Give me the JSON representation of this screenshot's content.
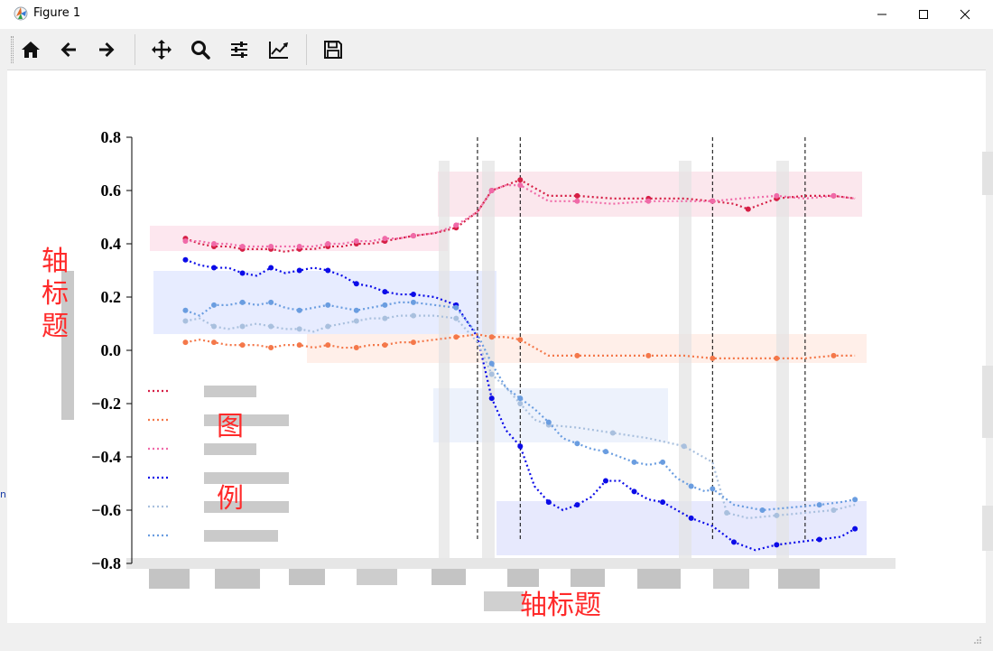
{
  "window": {
    "title": "Figure 1"
  },
  "toolbar": {
    "buttons": [
      {
        "name": "home",
        "icon": "home-icon"
      },
      {
        "name": "back",
        "icon": "arrow-left-icon"
      },
      {
        "name": "forward",
        "icon": "arrow-right-icon"
      },
      {
        "name": "pan",
        "icon": "move-icon"
      },
      {
        "name": "zoom",
        "icon": "magnifier-icon"
      },
      {
        "name": "subplots",
        "icon": "sliders-icon"
      },
      {
        "name": "edit",
        "icon": "line-chart-icon"
      },
      {
        "name": "save",
        "icon": "floppy-disk-icon"
      }
    ]
  },
  "annotations": {
    "ylabel": "轴标题",
    "xlabel": "轴标题",
    "legend_line1": "图",
    "legend_line2": "例"
  },
  "left_fragment": "n",
  "chart_data": {
    "type": "line",
    "ylim": [
      -0.8,
      0.8
    ],
    "yticks": [
      "0.8",
      "0.6",
      "0.4",
      "0.2",
      "0.0",
      "−0.2",
      "−0.4",
      "−0.6",
      "−0.8"
    ],
    "ytick_values": [
      0.8,
      0.6,
      0.4,
      0.2,
      0.0,
      -0.2,
      -0.4,
      -0.6,
      -0.8
    ],
    "x_range": [
      0,
      100
    ],
    "vlines": [
      46,
      52,
      79,
      92
    ],
    "legend_colors": [
      "#d61f45",
      "#f4784a",
      "#f06aa8",
      "#0b0be8",
      "#a9c0de",
      "#6a9de0"
    ],
    "series": [
      {
        "color": "#d61f45",
        "points": [
          [
            5,
            0.42
          ],
          [
            7,
            0.4
          ],
          [
            9,
            0.39
          ],
          [
            11,
            0.39
          ],
          [
            13,
            0.38
          ],
          [
            15,
            0.38
          ],
          [
            17,
            0.38
          ],
          [
            19,
            0.37
          ],
          [
            21,
            0.38
          ],
          [
            23,
            0.38
          ],
          [
            25,
            0.39
          ],
          [
            27,
            0.39
          ],
          [
            29,
            0.4
          ],
          [
            31,
            0.4
          ],
          [
            33,
            0.41
          ],
          [
            35,
            0.42
          ],
          [
            37,
            0.43
          ],
          [
            40,
            0.44
          ],
          [
            43,
            0.46
          ],
          [
            46,
            0.52
          ],
          [
            48,
            0.6
          ],
          [
            50,
            0.62
          ],
          [
            52,
            0.64
          ],
          [
            56,
            0.58
          ],
          [
            60,
            0.58
          ],
          [
            65,
            0.57
          ],
          [
            70,
            0.57
          ],
          [
            75,
            0.57
          ],
          [
            79,
            0.56
          ],
          [
            82,
            0.55
          ],
          [
            84,
            0.53
          ],
          [
            86,
            0.55
          ],
          [
            88,
            0.57
          ],
          [
            92,
            0.58
          ],
          [
            96,
            0.58
          ],
          [
            99,
            0.57
          ]
        ]
      },
      {
        "color": "#f06aa8",
        "points": [
          [
            5,
            0.41
          ],
          [
            7,
            0.41
          ],
          [
            9,
            0.4
          ],
          [
            11,
            0.4
          ],
          [
            13,
            0.39
          ],
          [
            15,
            0.39
          ],
          [
            17,
            0.39
          ],
          [
            19,
            0.39
          ],
          [
            21,
            0.39
          ],
          [
            23,
            0.39
          ],
          [
            25,
            0.4
          ],
          [
            27,
            0.4
          ],
          [
            29,
            0.41
          ],
          [
            31,
            0.41
          ],
          [
            33,
            0.42
          ],
          [
            35,
            0.42
          ],
          [
            37,
            0.43
          ],
          [
            40,
            0.44
          ],
          [
            43,
            0.47
          ],
          [
            46,
            0.52
          ],
          [
            48,
            0.6
          ],
          [
            50,
            0.62
          ],
          [
            52,
            0.62
          ],
          [
            56,
            0.56
          ],
          [
            60,
            0.56
          ],
          [
            65,
            0.55
          ],
          [
            70,
            0.56
          ],
          [
            75,
            0.56
          ],
          [
            79,
            0.56
          ],
          [
            83,
            0.57
          ],
          [
            88,
            0.58
          ],
          [
            92,
            0.57
          ],
          [
            96,
            0.58
          ],
          [
            99,
            0.57
          ]
        ]
      },
      {
        "color": "#0b0be8",
        "points": [
          [
            5,
            0.34
          ],
          [
            7,
            0.32
          ],
          [
            9,
            0.31
          ],
          [
            11,
            0.31
          ],
          [
            13,
            0.29
          ],
          [
            15,
            0.28
          ],
          [
            17,
            0.31
          ],
          [
            19,
            0.29
          ],
          [
            21,
            0.3
          ],
          [
            23,
            0.31
          ],
          [
            25,
            0.3
          ],
          [
            27,
            0.28
          ],
          [
            29,
            0.25
          ],
          [
            31,
            0.24
          ],
          [
            33,
            0.22
          ],
          [
            35,
            0.21
          ],
          [
            37,
            0.21
          ],
          [
            40,
            0.2
          ],
          [
            43,
            0.17
          ],
          [
            46,
            0.05
          ],
          [
            48,
            -0.18
          ],
          [
            50,
            -0.3
          ],
          [
            52,
            -0.36
          ],
          [
            54,
            -0.51
          ],
          [
            56,
            -0.57
          ],
          [
            58,
            -0.6
          ],
          [
            60,
            -0.58
          ],
          [
            62,
            -0.55
          ],
          [
            64,
            -0.49
          ],
          [
            66,
            -0.49
          ],
          [
            68,
            -0.53
          ],
          [
            70,
            -0.56
          ],
          [
            72,
            -0.57
          ],
          [
            74,
            -0.6
          ],
          [
            76,
            -0.63
          ],
          [
            79,
            -0.66
          ],
          [
            82,
            -0.72
          ],
          [
            85,
            -0.75
          ],
          [
            88,
            -0.73
          ],
          [
            91,
            -0.72
          ],
          [
            94,
            -0.71
          ],
          [
            97,
            -0.7
          ],
          [
            99,
            -0.67
          ]
        ]
      },
      {
        "color": "#a9c0de",
        "points": [
          [
            5,
            0.11
          ],
          [
            7,
            0.12
          ],
          [
            9,
            0.09
          ],
          [
            11,
            0.08
          ],
          [
            13,
            0.09
          ],
          [
            15,
            0.1
          ],
          [
            17,
            0.09
          ],
          [
            19,
            0.08
          ],
          [
            21,
            0.08
          ],
          [
            23,
            0.07
          ],
          [
            25,
            0.09
          ],
          [
            27,
            0.1
          ],
          [
            29,
            0.11
          ],
          [
            31,
            0.12
          ],
          [
            33,
            0.12
          ],
          [
            35,
            0.13
          ],
          [
            37,
            0.13
          ],
          [
            40,
            0.13
          ],
          [
            43,
            0.12
          ],
          [
            46,
            0.03
          ],
          [
            48,
            -0.09
          ],
          [
            50,
            -0.14
          ],
          [
            52,
            -0.2
          ],
          [
            54,
            -0.26
          ],
          [
            56,
            -0.28
          ],
          [
            60,
            -0.29
          ],
          [
            65,
            -0.31
          ],
          [
            70,
            -0.33
          ],
          [
            75,
            -0.36
          ],
          [
            79,
            -0.42
          ],
          [
            81,
            -0.61
          ],
          [
            84,
            -0.63
          ],
          [
            88,
            -0.62
          ],
          [
            92,
            -0.61
          ],
          [
            96,
            -0.6
          ],
          [
            99,
            -0.58
          ]
        ]
      },
      {
        "color": "#6a9de0",
        "points": [
          [
            5,
            0.15
          ],
          [
            7,
            0.13
          ],
          [
            9,
            0.17
          ],
          [
            11,
            0.17
          ],
          [
            13,
            0.18
          ],
          [
            15,
            0.17
          ],
          [
            17,
            0.18
          ],
          [
            19,
            0.16
          ],
          [
            21,
            0.15
          ],
          [
            23,
            0.16
          ],
          [
            25,
            0.17
          ],
          [
            27,
            0.16
          ],
          [
            29,
            0.15
          ],
          [
            31,
            0.16
          ],
          [
            33,
            0.17
          ],
          [
            35,
            0.18
          ],
          [
            37,
            0.18
          ],
          [
            40,
            0.17
          ],
          [
            43,
            0.16
          ],
          [
            46,
            0.06
          ],
          [
            48,
            -0.05
          ],
          [
            50,
            -0.14
          ],
          [
            52,
            -0.18
          ],
          [
            54,
            -0.22
          ],
          [
            56,
            -0.27
          ],
          [
            58,
            -0.33
          ],
          [
            60,
            -0.35
          ],
          [
            62,
            -0.37
          ],
          [
            64,
            -0.38
          ],
          [
            66,
            -0.4
          ],
          [
            68,
            -0.42
          ],
          [
            70,
            -0.43
          ],
          [
            72,
            -0.42
          ],
          [
            74,
            -0.48
          ],
          [
            76,
            -0.51
          ],
          [
            78,
            -0.53
          ],
          [
            79,
            -0.52
          ],
          [
            82,
            -0.58
          ],
          [
            86,
            -0.6
          ],
          [
            90,
            -0.59
          ],
          [
            94,
            -0.58
          ],
          [
            97,
            -0.57
          ],
          [
            99,
            -0.56
          ]
        ]
      },
      {
        "color": "#f4784a",
        "points": [
          [
            5,
            0.03
          ],
          [
            7,
            0.04
          ],
          [
            9,
            0.03
          ],
          [
            11,
            0.02
          ],
          [
            13,
            0.02
          ],
          [
            15,
            0.02
          ],
          [
            17,
            0.01
          ],
          [
            19,
            0.02
          ],
          [
            21,
            0.02
          ],
          [
            23,
            0.01
          ],
          [
            25,
            0.02
          ],
          [
            27,
            0.01
          ],
          [
            29,
            0.01
          ],
          [
            31,
            0.02
          ],
          [
            33,
            0.02
          ],
          [
            35,
            0.03
          ],
          [
            37,
            0.03
          ],
          [
            40,
            0.04
          ],
          [
            43,
            0.05
          ],
          [
            46,
            0.06
          ],
          [
            48,
            0.05
          ],
          [
            50,
            0.05
          ],
          [
            52,
            0.04
          ],
          [
            56,
            -0.02
          ],
          [
            60,
            -0.02
          ],
          [
            65,
            -0.02
          ],
          [
            70,
            -0.02
          ],
          [
            75,
            -0.02
          ],
          [
            79,
            -0.03
          ],
          [
            84,
            -0.03
          ],
          [
            88,
            -0.03
          ],
          [
            92,
            -0.03
          ],
          [
            96,
            -0.02
          ],
          [
            99,
            -0.02
          ]
        ]
      }
    ]
  }
}
